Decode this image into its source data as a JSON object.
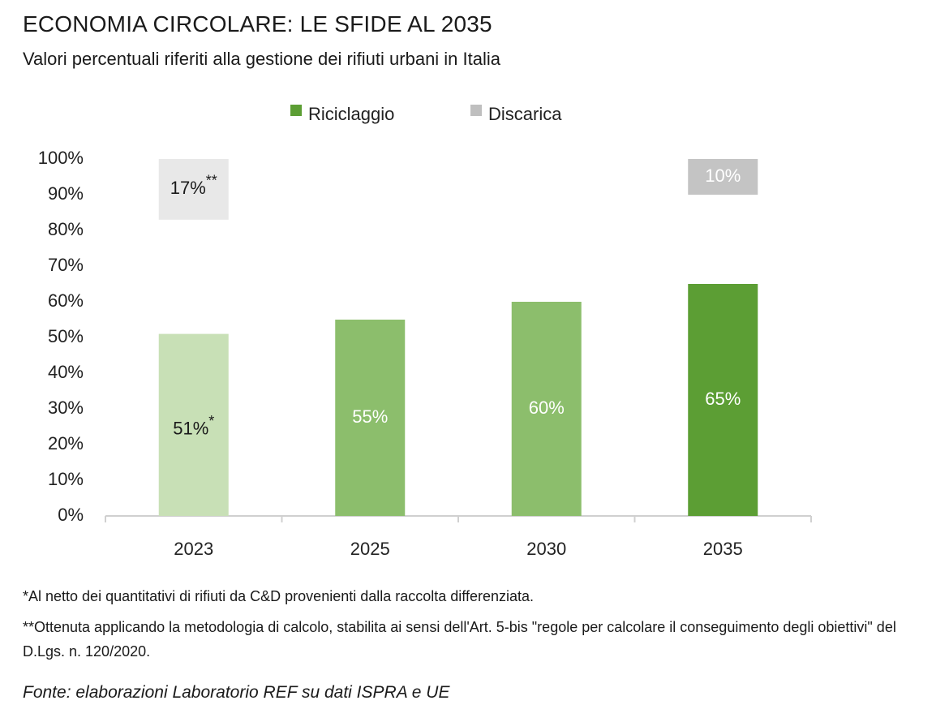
{
  "title": "ECONOMIA CIRCOLARE: LE SFIDE AL 2035",
  "subtitle": "Valori percentuali riferiti alla gestione dei rifiuti urbani in Italia",
  "colors": {
    "riciclaggio_shades": [
      "#c8e0b6",
      "#8cbe6c",
      "#8cbe6c",
      "#5c9e34"
    ],
    "discarica_shades": [
      "#e8e8e8",
      "#c4c4c4"
    ],
    "legend_riciclaggio": "#5c9e34",
    "legend_discarica": "#bfbfbf",
    "axis": "#d0d0d0"
  },
  "chart_data": {
    "type": "bar",
    "title": "ECONOMIA CIRCOLARE: LE SFIDE AL 2035",
    "categories": [
      "2023",
      "2025",
      "2030",
      "2035"
    ],
    "series": [
      {
        "name": "Riciclaggio",
        "values": [
          51,
          55,
          60,
          65
        ],
        "labels": [
          "51%",
          "55%",
          "60%",
          "65%"
        ],
        "label_suffixes": [
          "*",
          "",
          "",
          ""
        ]
      },
      {
        "name": "Discarica",
        "values": [
          17,
          null,
          null,
          10
        ],
        "labels": [
          "17%",
          "",
          "",
          "10%"
        ],
        "label_suffixes": [
          "**",
          "",
          "",
          ""
        ]
      }
    ],
    "ylim": [
      0,
      100
    ],
    "yticks": [
      "0%",
      "10%",
      "20%",
      "30%",
      "40%",
      "50%",
      "60%",
      "70%",
      "80%",
      "90%",
      "100%"
    ],
    "xlabel": "",
    "ylabel": "",
    "legend": [
      "Riciclaggio",
      "Discarica"
    ],
    "legend_position": "top-center",
    "grid": false
  },
  "notes": [
    "*Al netto dei quantitativi di rifiuti da C&D provenienti dalla raccolta differenziata.",
    "**Ottenuta applicando la metodologia di calcolo, stabilita ai sensi dell'Art. 5-bis \"regole per calcolare il conseguimento degli obiettivi\" del D.Lgs. n. 120/2020."
  ],
  "source": "Fonte: elaborazioni Laboratorio REF su dati ISPRA e UE"
}
